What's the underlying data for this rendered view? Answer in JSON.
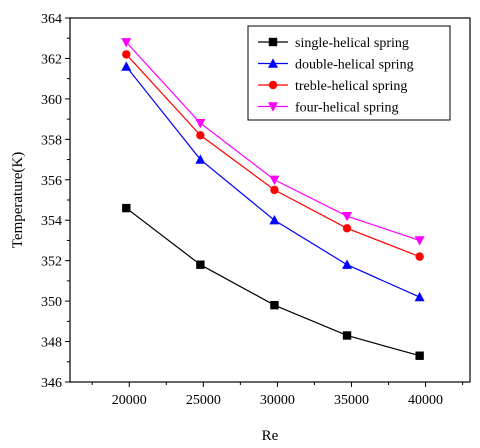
{
  "chart_data": {
    "type": "line",
    "xlabel": "Re",
    "ylabel": "Temperature(K)",
    "xlim": [
      16000,
      43000
    ],
    "ylim": [
      346,
      364
    ],
    "xticks": [
      20000,
      25000,
      30000,
      35000,
      40000
    ],
    "yticks": [
      346,
      348,
      350,
      352,
      354,
      356,
      358,
      360,
      362,
      364
    ],
    "x": [
      19800,
      24800,
      29800,
      34700,
      39600
    ],
    "legend_position": "top-right",
    "grid": false,
    "series": [
      {
        "name": "single-helical spring",
        "color": "#000000",
        "marker": "square",
        "values": [
          354.6,
          351.8,
          349.8,
          348.3,
          347.3
        ]
      },
      {
        "name": "double-helical spring",
        "color": "#0000ff",
        "marker": "triangle-up",
        "values": [
          361.6,
          357.0,
          354.0,
          351.8,
          350.2
        ]
      },
      {
        "name": "treble-helical spring",
        "color": "#ff0000",
        "marker": "circle",
        "values": [
          362.2,
          358.2,
          355.5,
          353.6,
          352.2
        ]
      },
      {
        "name": "four-helical spring",
        "color": "#ff00ff",
        "marker": "triangle-down",
        "values": [
          362.8,
          358.8,
          356.0,
          354.2,
          353.0
        ]
      }
    ]
  }
}
